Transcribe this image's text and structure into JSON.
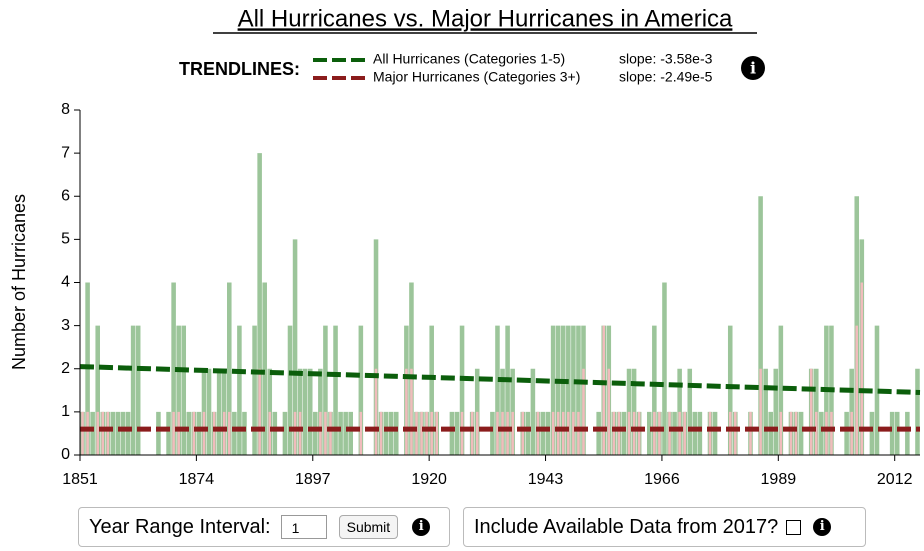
{
  "chart_data": {
    "type": "bar",
    "title": "All Hurricanes vs. Major Hurricanes in America",
    "y_label": "Number of Hurricanes",
    "legend_title": "TRENDLINES:",
    "x": [
      1851,
      1852,
      1853,
      1854,
      1855,
      1856,
      1857,
      1858,
      1859,
      1860,
      1861,
      1862,
      1863,
      1864,
      1865,
      1866,
      1867,
      1868,
      1869,
      1870,
      1871,
      1872,
      1873,
      1874,
      1875,
      1876,
      1877,
      1878,
      1879,
      1880,
      1881,
      1882,
      1883,
      1884,
      1885,
      1886,
      1887,
      1888,
      1889,
      1890,
      1891,
      1892,
      1893,
      1894,
      1895,
      1896,
      1897,
      1898,
      1899,
      1900,
      1901,
      1902,
      1903,
      1904,
      1905,
      1906,
      1907,
      1908,
      1909,
      1910,
      1911,
      1912,
      1913,
      1914,
      1915,
      1916,
      1917,
      1918,
      1919,
      1920,
      1921,
      1922,
      1923,
      1924,
      1925,
      1926,
      1927,
      1928,
      1929,
      1930,
      1931,
      1932,
      1933,
      1934,
      1935,
      1936,
      1937,
      1938,
      1939,
      1940,
      1941,
      1942,
      1943,
      1944,
      1945,
      1946,
      1947,
      1948,
      1949,
      1950,
      1951,
      1952,
      1953,
      1954,
      1955,
      1956,
      1957,
      1958,
      1959,
      1960,
      1961,
      1962,
      1963,
      1964,
      1965,
      1966,
      1967,
      1968,
      1969,
      1970,
      1971,
      1972,
      1973,
      1974,
      1975,
      1976,
      1977,
      1978,
      1979,
      1980,
      1981,
      1982,
      1983,
      1984,
      1985,
      1986,
      1987,
      1988,
      1989,
      1990,
      1991,
      1992,
      1993,
      1994,
      1995,
      1996,
      1997,
      1998,
      1999,
      2000,
      2001,
      2002,
      2003,
      2004,
      2005,
      2006,
      2007,
      2008,
      2009,
      2010,
      2011,
      2012,
      2013,
      2014,
      2015,
      2016
    ],
    "xlim": [
      1851,
      2017
    ],
    "xticks": [
      1851,
      1874,
      1897,
      1920,
      1943,
      1966,
      1989,
      2012
    ],
    "ylim": [
      0,
      8
    ],
    "yticks": [
      0,
      1,
      2,
      3,
      4,
      5,
      6,
      7,
      8
    ],
    "series": [
      {
        "name": "All Hurricanes (Categories 1-5)",
        "color": "#9cc59a",
        "values": [
          1,
          4,
          1,
          3,
          1,
          1,
          1,
          1,
          1,
          1,
          3,
          3,
          0,
          0,
          0,
          1,
          0,
          1,
          4,
          3,
          3,
          1,
          1,
          1,
          2,
          2,
          1,
          2,
          2,
          4,
          1,
          3,
          1,
          0,
          3,
          7,
          4,
          2,
          1,
          0,
          1,
          3,
          5,
          2,
          2,
          2,
          1,
          2,
          3,
          1,
          3,
          1,
          1,
          1,
          0,
          3,
          0,
          0,
          5,
          1,
          1,
          1,
          1,
          0,
          3,
          4,
          1,
          1,
          1,
          3,
          1,
          0,
          0,
          1,
          1,
          3,
          0,
          1,
          2,
          0,
          0,
          1,
          3,
          2,
          3,
          2,
          0,
          1,
          1,
          2,
          1,
          1,
          1,
          3,
          3,
          3,
          3,
          3,
          3,
          3,
          0,
          0,
          1,
          3,
          3,
          1,
          1,
          1,
          2,
          2,
          1,
          0,
          1,
          3,
          1,
          4,
          1,
          1,
          2,
          1,
          2,
          1,
          1,
          0,
          1,
          1,
          0,
          0,
          3,
          1,
          0,
          0,
          1,
          0,
          6,
          2,
          1,
          2,
          3,
          0,
          1,
          1,
          1,
          0,
          2,
          2,
          1,
          3,
          3,
          0,
          0,
          1,
          2,
          6,
          5,
          0,
          1,
          3,
          0,
          0,
          1,
          1,
          0,
          1,
          0,
          2
        ]
      },
      {
        "name": "Major Hurricanes (Categories 3+)",
        "color": "#f0bcbc",
        "values": [
          1,
          1,
          0,
          1,
          1,
          1,
          0,
          0,
          0,
          0,
          0,
          0,
          0,
          0,
          0,
          0,
          0,
          0,
          1,
          1,
          0,
          0,
          1,
          0,
          1,
          0,
          1,
          0,
          1,
          1,
          0,
          0,
          0,
          0,
          0,
          2,
          0,
          1,
          0,
          0,
          0,
          0,
          1,
          1,
          0,
          0,
          0,
          1,
          1,
          1,
          0,
          0,
          0,
          0,
          0,
          1,
          0,
          0,
          2,
          1,
          0,
          0,
          0,
          0,
          2,
          2,
          1,
          1,
          1,
          1,
          1,
          0,
          0,
          0,
          0,
          1,
          0,
          1,
          1,
          0,
          0,
          0,
          1,
          1,
          1,
          1,
          0,
          1,
          0,
          0,
          1,
          0,
          0,
          1,
          1,
          1,
          1,
          1,
          1,
          2,
          0,
          0,
          0,
          3,
          2,
          1,
          1,
          0,
          1,
          1,
          1,
          0,
          0,
          1,
          1,
          0,
          1,
          0,
          1,
          1,
          0,
          0,
          0,
          0,
          1,
          0,
          0,
          0,
          1,
          1,
          0,
          0,
          1,
          0,
          2,
          0,
          0,
          0,
          1,
          0,
          1,
          1,
          0,
          0,
          2,
          1,
          0,
          1,
          1,
          0,
          0,
          0,
          1,
          3,
          4,
          0,
          0,
          0,
          0,
          0,
          0,
          0,
          0,
          0,
          0,
          0
        ]
      }
    ],
    "trendlines": [
      {
        "slope_label": "slope: -3.58e-3",
        "color": "#0b5e0b",
        "x": [
          1851,
          2017
        ],
        "values": [
          2.05,
          1.45
        ]
      },
      {
        "slope_label": "slope: -2.49e-5",
        "color": "#8b1c1c",
        "x": [
          1851,
          2017
        ],
        "values": [
          0.6,
          0.6
        ]
      }
    ]
  },
  "controls": {
    "interval_label": "Year Range Interval:",
    "interval_value": "1",
    "submit": "Submit",
    "include_label": "Include Available Data from 2017?"
  }
}
